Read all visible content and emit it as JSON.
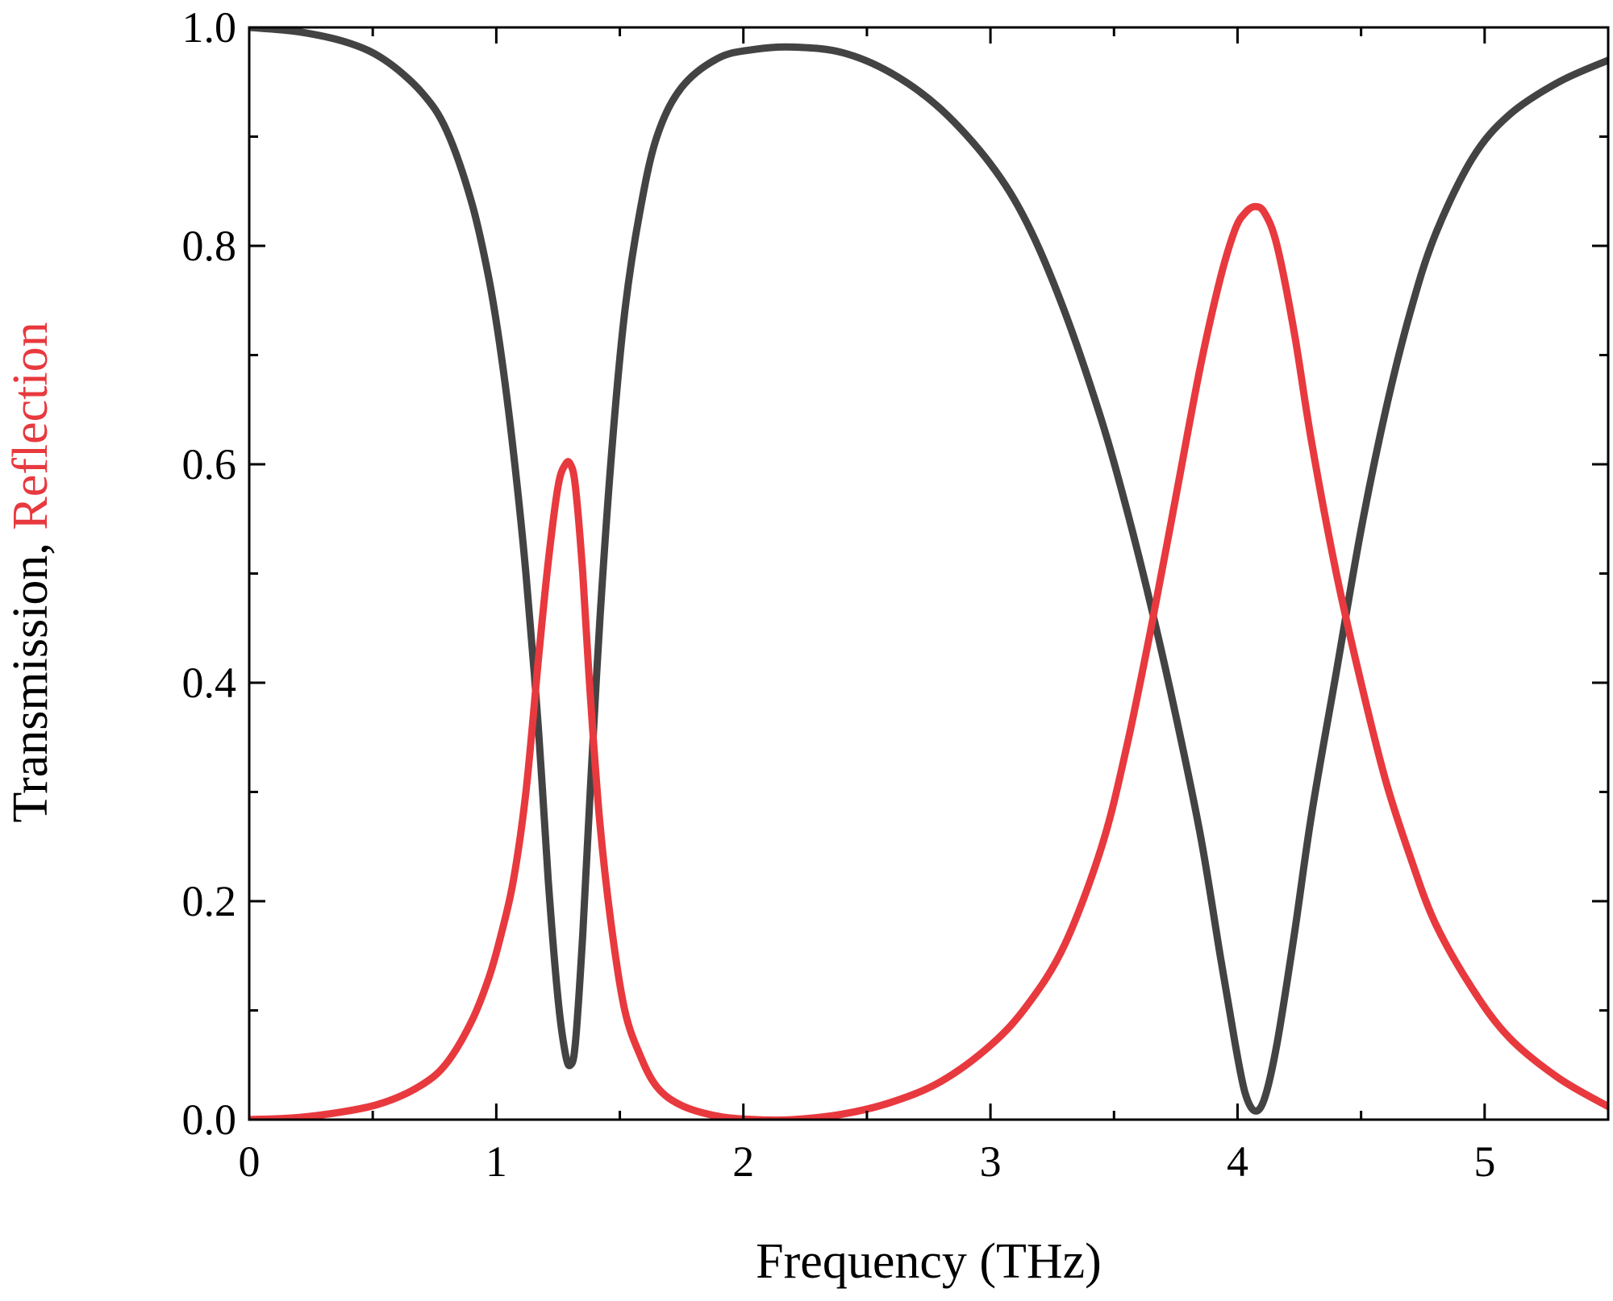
{
  "chart_data": {
    "type": "line",
    "title": "",
    "xlabel": "Frequency (THz)",
    "ylabel_parts": [
      {
        "text": "Transmission, ",
        "color": "#000000"
      },
      {
        "text": "Reflection",
        "color": "#e8393e"
      }
    ],
    "xlim": [
      0,
      5.5
    ],
    "ylim": [
      0,
      1.0
    ],
    "x_major_ticks": [
      0,
      1,
      2,
      3,
      4,
      5
    ],
    "x_tick_labels": [
      "0",
      "1",
      "2",
      "3",
      "4",
      "5"
    ],
    "x_minor_ticks": [
      0.5,
      1.5,
      2.5,
      3.5,
      4.5
    ],
    "y_major_ticks": [
      0,
      0.2,
      0.4,
      0.6,
      0.8,
      1.0
    ],
    "y_tick_labels": [
      "0.0",
      "0.2",
      "0.4",
      "0.6",
      "0.8",
      "1.0"
    ],
    "y_minor_ticks": [
      0.1,
      0.3,
      0.5,
      0.7,
      0.9
    ],
    "grid": false,
    "legend": "none",
    "series": [
      {
        "color": "#434343",
        "points": [
          [
            0,
            1.0
          ],
          [
            0.2,
            0.996
          ],
          [
            0.4,
            0.986
          ],
          [
            0.55,
            0.97
          ],
          [
            0.7,
            0.94
          ],
          [
            0.8,
            0.905
          ],
          [
            0.9,
            0.84
          ],
          [
            0.97,
            0.77
          ],
          [
            1.02,
            0.7
          ],
          [
            1.07,
            0.61
          ],
          [
            1.12,
            0.5
          ],
          [
            1.17,
            0.36
          ],
          [
            1.21,
            0.22
          ],
          [
            1.25,
            0.11
          ],
          [
            1.28,
            0.06
          ],
          [
            1.3,
            0.05
          ],
          [
            1.32,
            0.07
          ],
          [
            1.35,
            0.17
          ],
          [
            1.38,
            0.3
          ],
          [
            1.42,
            0.46
          ],
          [
            1.47,
            0.62
          ],
          [
            1.52,
            0.74
          ],
          [
            1.58,
            0.83
          ],
          [
            1.65,
            0.9
          ],
          [
            1.75,
            0.945
          ],
          [
            1.9,
            0.972
          ],
          [
            2.05,
            0.98
          ],
          [
            2.2,
            0.982
          ],
          [
            2.4,
            0.977
          ],
          [
            2.6,
            0.958
          ],
          [
            2.8,
            0.925
          ],
          [
            3.0,
            0.875
          ],
          [
            3.15,
            0.82
          ],
          [
            3.3,
            0.74
          ],
          [
            3.45,
            0.64
          ],
          [
            3.55,
            0.56
          ],
          [
            3.65,
            0.47
          ],
          [
            3.75,
            0.37
          ],
          [
            3.85,
            0.26
          ],
          [
            3.93,
            0.15
          ],
          [
            3.99,
            0.07
          ],
          [
            4.03,
            0.025
          ],
          [
            4.07,
            0.008
          ],
          [
            4.11,
            0.02
          ],
          [
            4.16,
            0.07
          ],
          [
            4.23,
            0.17
          ],
          [
            4.3,
            0.28
          ],
          [
            4.4,
            0.41
          ],
          [
            4.5,
            0.54
          ],
          [
            4.6,
            0.65
          ],
          [
            4.7,
            0.74
          ],
          [
            4.8,
            0.81
          ],
          [
            4.95,
            0.88
          ],
          [
            5.1,
            0.92
          ],
          [
            5.3,
            0.95
          ],
          [
            5.5,
            0.97
          ]
        ]
      },
      {
        "color": "#e8393e",
        "points": [
          [
            0,
            0.0
          ],
          [
            0.2,
            0.002
          ],
          [
            0.4,
            0.008
          ],
          [
            0.55,
            0.016
          ],
          [
            0.7,
            0.032
          ],
          [
            0.8,
            0.052
          ],
          [
            0.9,
            0.09
          ],
          [
            0.97,
            0.13
          ],
          [
            1.02,
            0.17
          ],
          [
            1.07,
            0.22
          ],
          [
            1.12,
            0.3
          ],
          [
            1.17,
            0.42
          ],
          [
            1.21,
            0.51
          ],
          [
            1.25,
            0.58
          ],
          [
            1.28,
            0.6
          ],
          [
            1.3,
            0.6
          ],
          [
            1.32,
            0.58
          ],
          [
            1.35,
            0.5
          ],
          [
            1.38,
            0.39
          ],
          [
            1.42,
            0.27
          ],
          [
            1.47,
            0.17
          ],
          [
            1.52,
            0.1
          ],
          [
            1.58,
            0.06
          ],
          [
            1.65,
            0.03
          ],
          [
            1.75,
            0.013
          ],
          [
            1.9,
            0.003
          ],
          [
            2.05,
            0.0
          ],
          [
            2.2,
            0.0
          ],
          [
            2.4,
            0.005
          ],
          [
            2.6,
            0.016
          ],
          [
            2.8,
            0.035
          ],
          [
            3.0,
            0.068
          ],
          [
            3.15,
            0.105
          ],
          [
            3.3,
            0.16
          ],
          [
            3.45,
            0.25
          ],
          [
            3.55,
            0.34
          ],
          [
            3.65,
            0.45
          ],
          [
            3.75,
            0.57
          ],
          [
            3.85,
            0.69
          ],
          [
            3.93,
            0.77
          ],
          [
            3.99,
            0.815
          ],
          [
            4.03,
            0.83
          ],
          [
            4.07,
            0.836
          ],
          [
            4.11,
            0.83
          ],
          [
            4.16,
            0.8
          ],
          [
            4.23,
            0.72
          ],
          [
            4.3,
            0.62
          ],
          [
            4.4,
            0.5
          ],
          [
            4.5,
            0.4
          ],
          [
            4.6,
            0.31
          ],
          [
            4.7,
            0.24
          ],
          [
            4.8,
            0.18
          ],
          [
            4.95,
            0.12
          ],
          [
            5.1,
            0.075
          ],
          [
            5.3,
            0.038
          ],
          [
            5.5,
            0.012
          ]
        ]
      }
    ]
  }
}
